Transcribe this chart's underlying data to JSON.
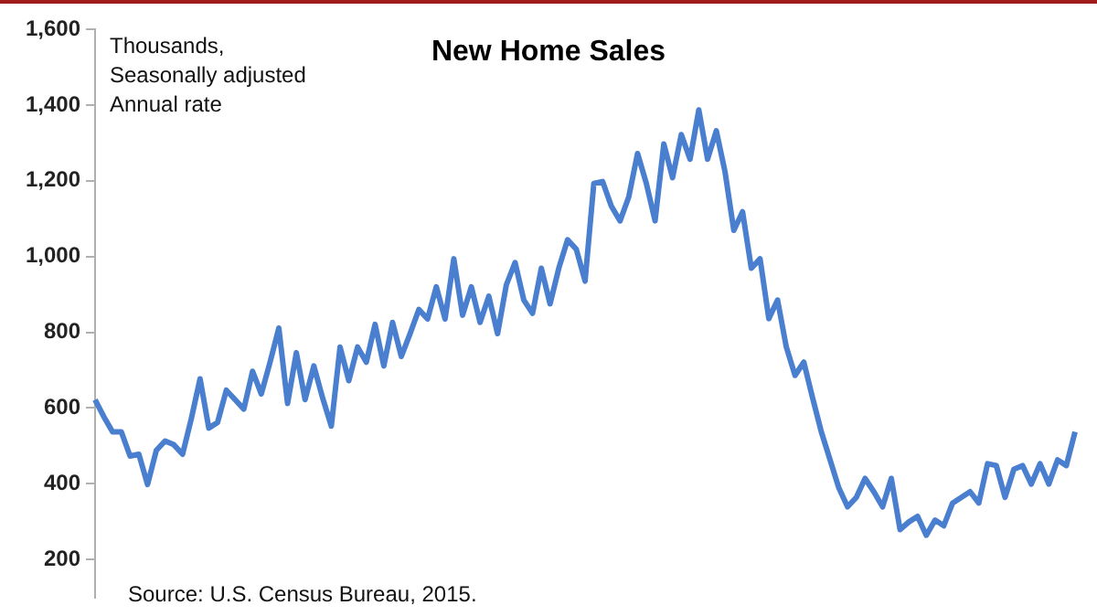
{
  "chart_data": {
    "type": "line",
    "title": "New Home Sales",
    "ylabel": "Thousands,\nSeasonally adjusted\nAnnual rate",
    "annotations": [
      "Source: U.S. Census Bureau, 2015."
    ],
    "categories": [
      null,
      null,
      null,
      null,
      null,
      null,
      null,
      null,
      null,
      null,
      null,
      null,
      null,
      null,
      null,
      null,
      null,
      null,
      null,
      null,
      null,
      null,
      null,
      null,
      null,
      null,
      null,
      null,
      null,
      null,
      null,
      null,
      null,
      null,
      null,
      null,
      null,
      null,
      null,
      null,
      null,
      null,
      null,
      null,
      null,
      null,
      null,
      null,
      null,
      null,
      null,
      null,
      null,
      null,
      null,
      null,
      null,
      null,
      null,
      null,
      null,
      null,
      null,
      null,
      null,
      null,
      null,
      null,
      null,
      null,
      null,
      null,
      null,
      null,
      null,
      null,
      null,
      null,
      null,
      null,
      null,
      null,
      null,
      null,
      null,
      null,
      null,
      null,
      null,
      null,
      null,
      null,
      null,
      null,
      null,
      null,
      null,
      null,
      null,
      null,
      null,
      null,
      null,
      null,
      null,
      null,
      null,
      null,
      null,
      null,
      null,
      null,
      null
    ],
    "series": [
      {
        "color": "#4a7fd0",
        "values": [
          622,
          577,
          537,
          537,
          473,
          478,
          398,
          488,
          513,
          503,
          478,
          572,
          677,
          547,
          562,
          647,
          622,
          597,
          697,
          637,
          721,
          811,
          612,
          746,
          622,
          711,
          627,
          552,
          761,
          672,
          761,
          721,
          821,
          711,
          826,
          736,
          796,
          860,
          835,
          920,
          835,
          994,
          845,
          920,
          826,
          895,
          796,
          925,
          984,
          885,
          850,
          969,
          875,
          969,
          1044,
          1019,
          935,
          1193,
          1198,
          1133,
          1094,
          1158,
          1272,
          1193,
          1094,
          1297,
          1208,
          1322,
          1257,
          1387,
          1257,
          1332,
          1223,
          1069,
          1118,
          969,
          994,
          836,
          885,
          761,
          686,
          721,
          627,
          537,
          463,
          389,
          339,
          364,
          414,
          379,
          339,
          414,
          279,
          299,
          314,
          264,
          304,
          289,
          349,
          364,
          379,
          349,
          453,
          448,
          364,
          438,
          448,
          399,
          453,
          399,
          463,
          448,
          537
        ]
      }
    ],
    "ylim": [
      100,
      1600
    ],
    "yticks": [
      {
        "value": 200,
        "label": "200"
      },
      {
        "value": 400,
        "label": "400"
      },
      {
        "value": 600,
        "label": "600"
      },
      {
        "value": 800,
        "label": "800"
      },
      {
        "value": 1000,
        "label": "1,000"
      },
      {
        "value": 1200,
        "label": "1,200"
      },
      {
        "value": 1400,
        "label": "1,400"
      },
      {
        "value": 1600,
        "label": "1,600"
      }
    ],
    "tick_labels": "y",
    "grid": false,
    "legend": false,
    "marker": "none",
    "line_style": "solid"
  }
}
